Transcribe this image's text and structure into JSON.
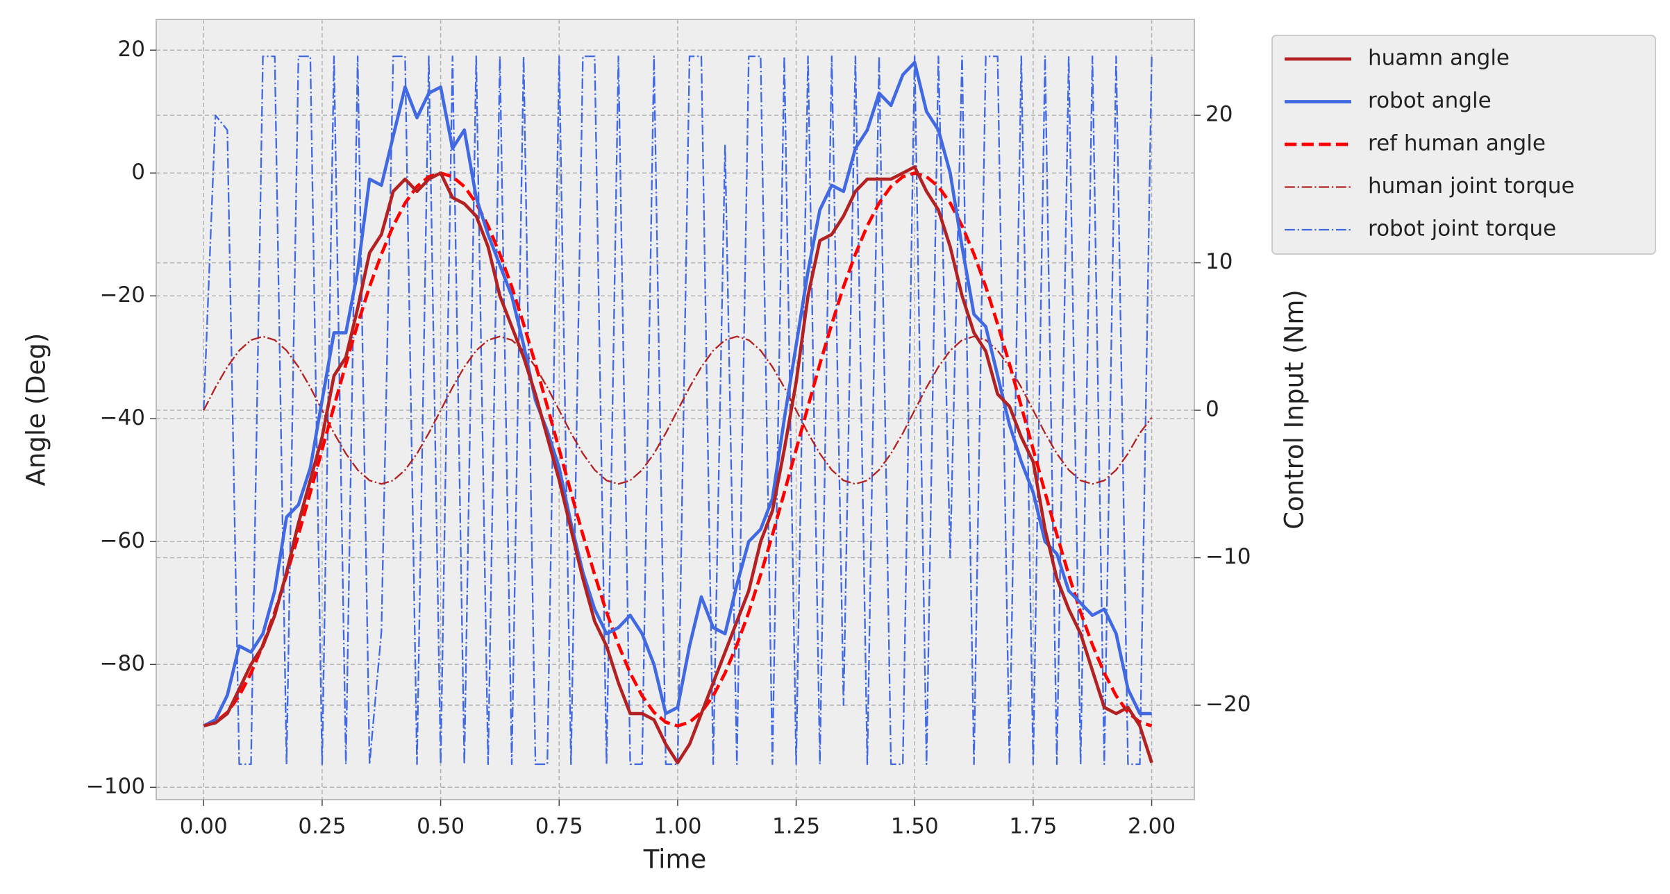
{
  "chart_data": {
    "type": "line",
    "x_label": "Time",
    "y_label": "Angle (Deg)",
    "y2_label": "Control Input (Nm)",
    "x": [
      0,
      0.025,
      0.05,
      0.075,
      0.1,
      0.125,
      0.15,
      0.175,
      0.2,
      0.225,
      0.25,
      0.275,
      0.3,
      0.325,
      0.35,
      0.375,
      0.4,
      0.425,
      0.45,
      0.475,
      0.5,
      0.525,
      0.55,
      0.575,
      0.6,
      0.625,
      0.65,
      0.675,
      0.7,
      0.725,
      0.75,
      0.775,
      0.8,
      0.825,
      0.85,
      0.875,
      0.9,
      0.925,
      0.95,
      0.975,
      1,
      1.025,
      1.05,
      1.075,
      1.1,
      1.125,
      1.15,
      1.175,
      1.2,
      1.225,
      1.25,
      1.275,
      1.3,
      1.325,
      1.35,
      1.375,
      1.4,
      1.425,
      1.45,
      1.475,
      1.5,
      1.525,
      1.55,
      1.575,
      1.6,
      1.625,
      1.65,
      1.675,
      1.7,
      1.725,
      1.75,
      1.775,
      1.8,
      1.825,
      1.85,
      1.875,
      1.9,
      1.925,
      1.95,
      1.975,
      2
    ],
    "series": [
      {
        "name": "huamn angle",
        "color": "#b22222",
        "linestyle": "solid",
        "linewidth": 3,
        "axis": "y",
        "values": [
          -90,
          -89.5,
          -88,
          -84,
          -80,
          -77,
          -72,
          -65,
          -57,
          -50,
          -43,
          -33,
          -30,
          -22,
          -13,
          -10,
          -3,
          -1,
          -3,
          -1,
          0,
          -4,
          -5,
          -7,
          -12,
          -20,
          -25,
          -30,
          -36,
          -43,
          -50,
          -58,
          -66,
          -73,
          -77,
          -83,
          -88,
          -88,
          -89,
          -93,
          -96,
          -93,
          -88,
          -83,
          -78,
          -73,
          -68,
          -60,
          -55,
          -45,
          -34,
          -20,
          -11,
          -10,
          -7,
          -3,
          -1,
          -1,
          -1,
          0,
          1,
          -3,
          -6,
          -12,
          -20,
          -26,
          -29,
          -36,
          -38,
          -43,
          -47,
          -58,
          -66,
          -71,
          -75,
          -81,
          -87,
          -88,
          -87,
          -90,
          -96
        ]
      },
      {
        "name": "robot angle",
        "color": "#4169e1",
        "linestyle": "solid",
        "linewidth": 3,
        "axis": "y",
        "values": [
          -90,
          -89,
          -85,
          -77,
          -78,
          -75,
          -68,
          -56,
          -54,
          -48,
          -37,
          -26,
          -26,
          -16,
          -1,
          -2,
          6,
          14,
          9,
          13,
          14,
          4,
          7,
          -4,
          -10,
          -15,
          -20,
          -28,
          -37,
          -42,
          -48,
          -57,
          -65,
          -71,
          -75,
          -74,
          -72,
          -75,
          -80,
          -88,
          -87,
          -77,
          -69,
          -74,
          -75,
          -67,
          -60,
          -58,
          -53,
          -40,
          -28,
          -16,
          -6,
          -2,
          -3,
          4,
          7,
          13,
          11,
          16,
          18,
          10,
          7,
          0,
          -12,
          -23,
          -25,
          -33,
          -41,
          -47,
          -52,
          -60,
          -62,
          -68,
          -70,
          -72,
          -71,
          -75,
          -84,
          -88,
          -88
        ]
      },
      {
        "name": "ref human angle",
        "color": "#ff0000",
        "linestyle": "dashed",
        "linewidth": 3,
        "axis": "y",
        "values": [
          -90,
          -89.4,
          -87.8,
          -85.1,
          -81.4,
          -76.8,
          -71.5,
          -65.4,
          -58.9,
          -52,
          -45,
          -38,
          -31.1,
          -24.6,
          -18.5,
          -13.2,
          -8.6,
          -4.9,
          -2.2,
          -0.6,
          0,
          -0.6,
          -2.2,
          -4.9,
          -8.6,
          -13.2,
          -18.5,
          -24.6,
          -31.1,
          -38,
          -45,
          -52,
          -58.9,
          -65.4,
          -71.5,
          -76.8,
          -81.4,
          -85.1,
          -87.8,
          -89.4,
          -90,
          -89.4,
          -87.8,
          -85.1,
          -81.4,
          -76.8,
          -71.5,
          -65.4,
          -58.9,
          -52,
          -45,
          -38,
          -31.1,
          -24.6,
          -18.5,
          -13.2,
          -8.6,
          -4.9,
          -2.2,
          -0.6,
          0,
          -0.6,
          -2.2,
          -4.9,
          -8.6,
          -13.2,
          -18.5,
          -24.6,
          -31.1,
          -38,
          -45,
          -52,
          -58.9,
          -65.4,
          -71.5,
          -76.8,
          -81.4,
          -85.1,
          -87.8,
          -89.4,
          -90
        ]
      },
      {
        "name": "human joint torque",
        "color": "#b22222",
        "linestyle": "dashdot",
        "linewidth": 1.5,
        "axis": "y2",
        "values": [
          0,
          1.55,
          2.94,
          4.05,
          4.76,
          5,
          4.76,
          4.05,
          2.94,
          1.55,
          0,
          -1.55,
          -2.94,
          -4.05,
          -4.76,
          -5,
          -4.76,
          -4.05,
          -2.94,
          -1.55,
          0,
          1.55,
          2.94,
          4.05,
          4.76,
          5,
          4.76,
          4.05,
          2.94,
          1.55,
          0,
          -1.55,
          -2.94,
          -4.05,
          -4.76,
          -5,
          -4.76,
          -4.05,
          -2.94,
          -1.55,
          0,
          1.55,
          2.94,
          4.05,
          4.76,
          5,
          4.76,
          4.05,
          2.94,
          1.55,
          0,
          -1.55,
          -2.94,
          -4.05,
          -4.76,
          -5,
          -4.76,
          -4.05,
          -2.94,
          -1.55,
          0,
          1.55,
          2.94,
          4.05,
          4.76,
          5,
          4.76,
          4.05,
          2.94,
          1.55,
          0,
          -1.55,
          -2.94,
          -4.05,
          -4.76,
          -5,
          -4.76,
          -4.05,
          -2.94,
          -1.55,
          -0.5
        ]
      },
      {
        "name": "robot joint torque",
        "color": "#4169e1",
        "linestyle": "dashdot",
        "linewidth": 1.5,
        "axis": "y2",
        "values": [
          0,
          20,
          19,
          -24,
          -24,
          24,
          24,
          -24,
          24,
          24,
          -24,
          24,
          -24,
          24,
          -24,
          -15,
          24,
          24,
          -24,
          24,
          -24,
          24,
          -24,
          24,
          -24,
          24,
          -24,
          24,
          -24,
          -24,
          24,
          -24,
          24,
          24,
          -24,
          24,
          -24,
          -24,
          24,
          -24,
          -24,
          24,
          24,
          -24,
          18,
          -24,
          24,
          24,
          -24,
          24,
          -24,
          24,
          -24,
          24,
          -20,
          24,
          -24,
          24,
          -24,
          -24,
          24,
          -24,
          24,
          -10,
          24,
          -24,
          24,
          24,
          -24,
          24,
          -24,
          24,
          -24,
          24,
          -24,
          24,
          -24,
          24,
          -24,
          -24,
          24
        ]
      }
    ],
    "xlim": [
      -0.1,
      2.09
    ],
    "ylim": [
      -102,
      25
    ],
    "y2lim": [
      -26.4,
      26.5
    ],
    "xticks": [
      {
        "value": 0,
        "label": "0.00"
      },
      {
        "value": 0.25,
        "label": "0.25"
      },
      {
        "value": 0.5,
        "label": "0.50"
      },
      {
        "value": 0.75,
        "label": "0.75"
      },
      {
        "value": 1,
        "label": "1.00"
      },
      {
        "value": 1.25,
        "label": "1.25"
      },
      {
        "value": 1.5,
        "label": "1.50"
      },
      {
        "value": 1.75,
        "label": "1.75"
      },
      {
        "value": 2,
        "label": "2.00"
      }
    ],
    "yticks": [
      {
        "value": -100,
        "label": "−100"
      },
      {
        "value": -80,
        "label": "−80"
      },
      {
        "value": -60,
        "label": "−60"
      },
      {
        "value": -40,
        "label": "−40"
      },
      {
        "value": -20,
        "label": "−20"
      },
      0,
      20
    ],
    "y2ticks": [
      {
        "value": -20,
        "label": "−20"
      },
      {
        "value": -10,
        "label": "−10"
      },
      0,
      10,
      20
    ],
    "grid": true,
    "legend": "outside upper right"
  }
}
